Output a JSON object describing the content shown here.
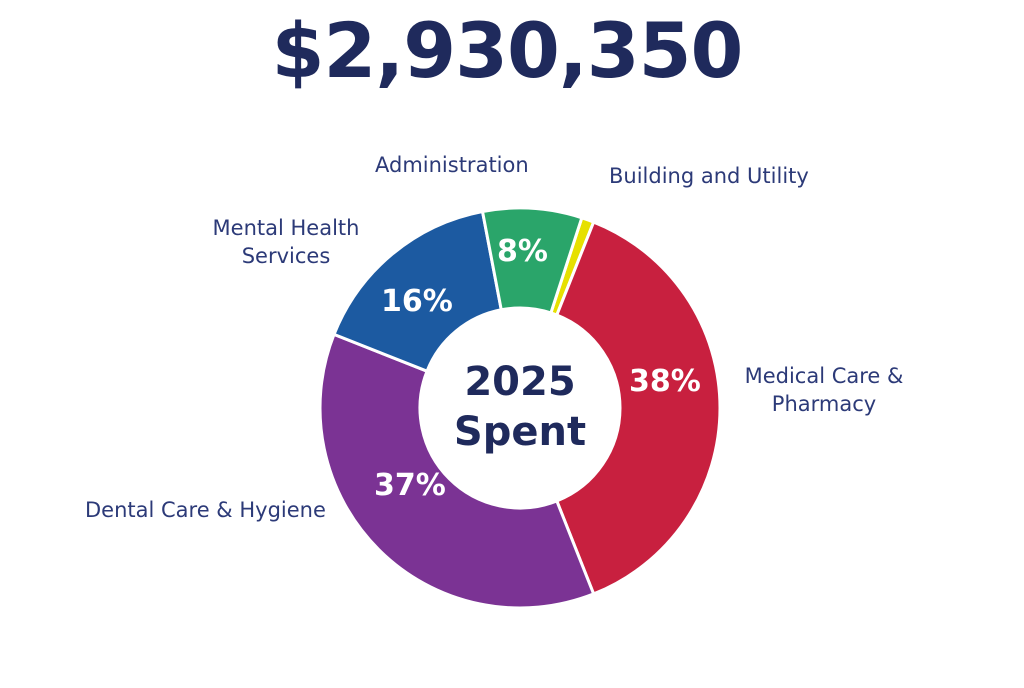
{
  "header": {
    "total": "$2,930,350"
  },
  "center": {
    "year": "2025",
    "word": "Spent"
  },
  "chart_data": {
    "type": "pie",
    "title": "$2,930,350",
    "categories": [
      "Building and Utility",
      "Medical Care & Pharmacy",
      "Dental Care & Hygiene",
      "Mental Health Services",
      "Administration"
    ],
    "values": [
      1,
      38,
      37,
      16,
      8
    ],
    "colors": [
      "#e6e000",
      "#c8203f",
      "#7b3394",
      "#1c5aa1",
      "#2aa56a"
    ],
    "labels": {
      "administration": "Administration",
      "building": "Building and Utility",
      "mental_line1": "Mental Health",
      "mental_line2": "Services",
      "medical_line1": "Medical Care &",
      "medical_line2": "Pharmacy",
      "dental": "Dental Care & Hygiene"
    },
    "data_labels": {
      "medical": "38%",
      "dental": "37%",
      "mental": "16%",
      "administration": "8%"
    }
  }
}
